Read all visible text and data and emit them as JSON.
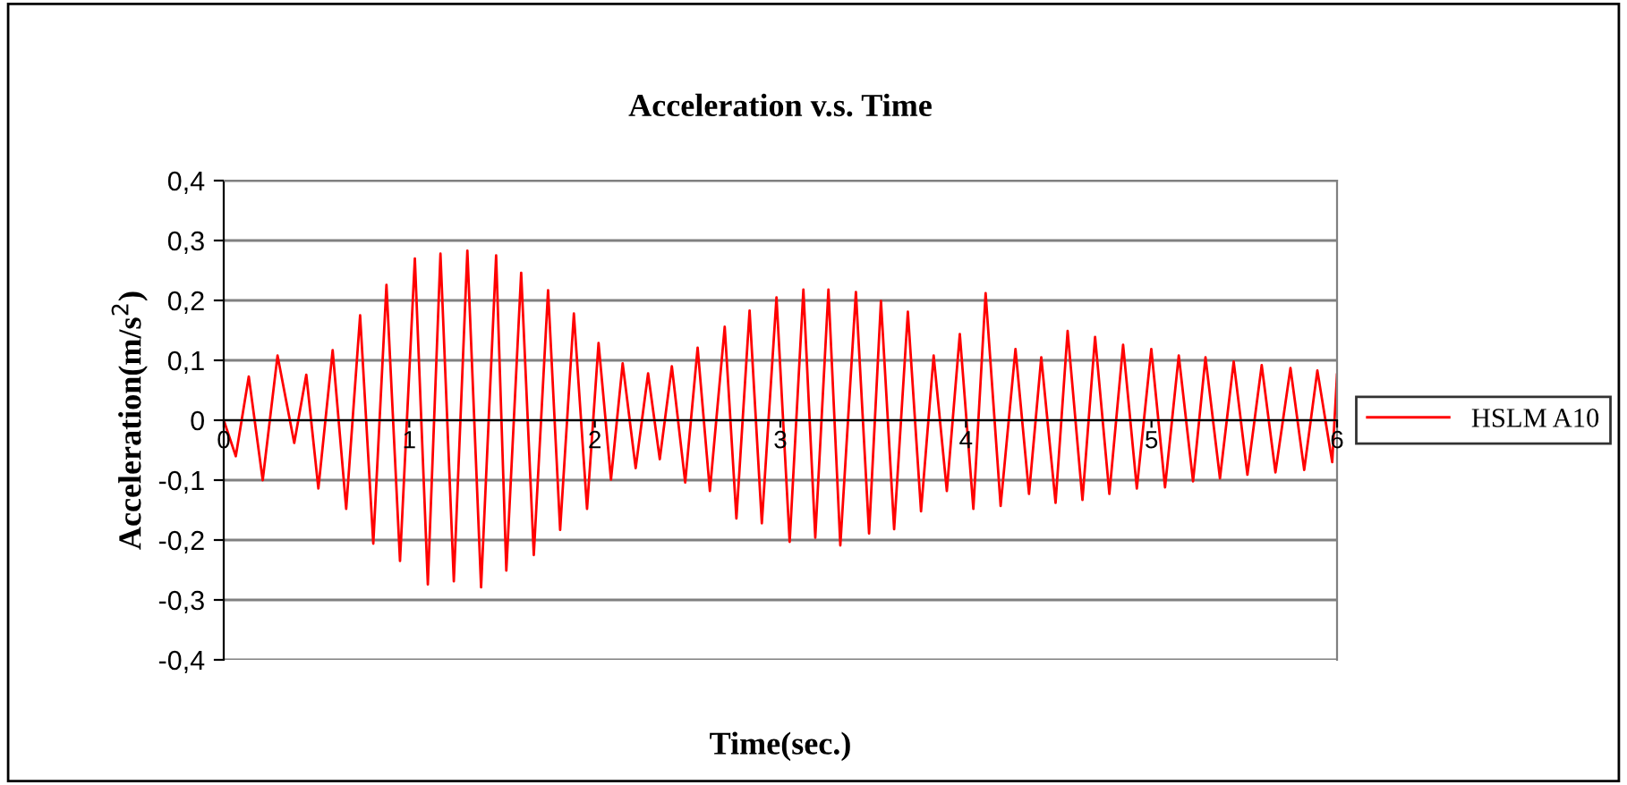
{
  "chart_data": {
    "type": "line",
    "title": "Acceleration v.s. Time",
    "xlabel": "Time(sec.)",
    "ylabel": "Acceleration(m/s$^{2}$)",
    "series": [
      {
        "name": "HSLM A10",
        "color": "#ff0000",
        "x": [
          0.0,
          0.065,
          0.135,
          0.21,
          0.29,
          0.38,
          0.445,
          0.51,
          0.587,
          0.66,
          0.735,
          0.806,
          0.877,
          0.95,
          1.03,
          1.1,
          1.168,
          1.24,
          1.313,
          1.387,
          1.468,
          1.523,
          1.603,
          1.671,
          1.748,
          1.813,
          1.887,
          1.958,
          2.02,
          2.087,
          2.15,
          2.22,
          2.287,
          2.35,
          2.415,
          2.487,
          2.554,
          2.62,
          2.7,
          2.763,
          2.834,
          2.9,
          2.979,
          3.05,
          3.124,
          3.188,
          3.259,
          3.323,
          3.407,
          3.478,
          3.542,
          3.613,
          3.687,
          3.758,
          3.826,
          3.897,
          3.967,
          4.04,
          4.106,
          4.187,
          4.267,
          4.34,
          4.406,
          4.483,
          4.548,
          4.628,
          4.696,
          4.773,
          4.847,
          4.921,
          4.999,
          5.073,
          5.147,
          5.224,
          5.291,
          5.369,
          5.443,
          5.517,
          5.594,
          5.668,
          5.749,
          5.823,
          5.894,
          5.974,
          6.0
        ],
        "values": [
          0.0,
          -0.06,
          0.073,
          -0.1,
          0.108,
          -0.038,
          0.076,
          -0.114,
          0.117,
          -0.148,
          0.175,
          -0.206,
          0.226,
          -0.235,
          0.27,
          -0.274,
          0.278,
          -0.269,
          0.283,
          -0.279,
          0.275,
          -0.251,
          0.246,
          -0.225,
          0.217,
          -0.183,
          0.178,
          -0.148,
          0.129,
          -0.099,
          0.095,
          -0.08,
          0.078,
          -0.065,
          0.09,
          -0.104,
          0.121,
          -0.118,
          0.156,
          -0.164,
          0.183,
          -0.172,
          0.205,
          -0.203,
          0.218,
          -0.196,
          0.218,
          -0.209,
          0.214,
          -0.189,
          0.199,
          -0.182,
          0.181,
          -0.152,
          0.108,
          -0.118,
          0.144,
          -0.148,
          0.212,
          -0.143,
          0.119,
          -0.123,
          0.105,
          -0.138,
          0.149,
          -0.133,
          0.139,
          -0.123,
          0.126,
          -0.114,
          0.119,
          -0.112,
          0.108,
          -0.102,
          0.105,
          -0.097,
          0.098,
          -0.091,
          0.092,
          -0.087,
          0.087,
          -0.083,
          0.083,
          -0.07,
          0.076
        ]
      }
    ],
    "xlim": [
      0,
      6
    ],
    "xticks": [
      0,
      1,
      2,
      3,
      4,
      5,
      6
    ],
    "ylim": [
      -0.4,
      0.4
    ],
    "yticks": [
      {
        "value": -0.4,
        "label": "-0,4"
      },
      {
        "value": -0.3,
        "label": "-0,3"
      },
      {
        "value": -0.2,
        "label": "-0,2"
      },
      {
        "value": -0.1,
        "label": "-0,1"
      },
      0,
      {
        "value": 0.1,
        "label": "0,1"
      },
      {
        "value": 0.2,
        "label": "0,2"
      },
      {
        "value": 0.3,
        "label": "0,3"
      },
      {
        "value": 0.4,
        "label": "0,4"
      }
    ],
    "grid": "y",
    "legend": "right",
    "marker": "none",
    "line_style": "solid"
  }
}
